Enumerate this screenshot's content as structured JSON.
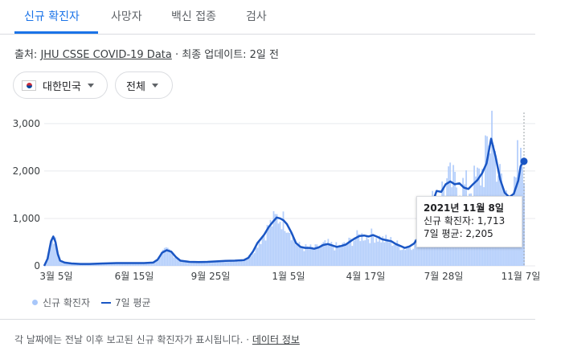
{
  "tabs": [
    {
      "label": "신규 확진자",
      "active": true
    },
    {
      "label": "사망자",
      "active": false
    },
    {
      "label": "백신 접종",
      "active": false
    },
    {
      "label": "검사",
      "active": false
    }
  ],
  "source": {
    "prefix": "출처: ",
    "link": "JHU CSSE COVID-19 Data",
    "updated": " · 최종 업데이트: 2일 전"
  },
  "filters": {
    "country": "대한민국",
    "region": "전체",
    "country_flag_icon": "south-korea-flag-icon",
    "dropdown_icon": "caret-down-icon"
  },
  "colors": {
    "bars": "#a8c7fa",
    "avg_line": "#1a56c4",
    "accent": "#1a73e8"
  },
  "tooltip": {
    "date": "2021년 11월 8일",
    "cases": "신규 확진자: 1,713",
    "avg": "7일 평균: 2,205"
  },
  "legend": {
    "cases": "신규 확진자",
    "avg": "7일 평균"
  },
  "footer": {
    "note": "각 날짜에는 전날 이후 보고된 신규 확진자가 표시됩니다. · ",
    "link": "데이터 정보"
  },
  "chart_data": {
    "type": "bar",
    "y_ticks": [
      "0",
      "1,000",
      "2,000",
      "3,000"
    ],
    "x_ticks": [
      "3월 5일",
      "6월 15일",
      "9월 25일",
      "1월 5일",
      "4월 17일",
      "7월 28일",
      "11월 7일"
    ],
    "ylim": [
      0,
      3200
    ],
    "grid": true,
    "series": [
      {
        "name": "7일 평균",
        "type": "line",
        "points": [
          [
            0,
            0
          ],
          [
            1.5,
            150
          ],
          [
            3,
            520
          ],
          [
            4,
            620
          ],
          [
            5,
            500
          ],
          [
            6,
            250
          ],
          [
            7,
            110
          ],
          [
            9,
            70
          ],
          [
            12,
            50
          ],
          [
            16,
            40
          ],
          [
            20,
            40
          ],
          [
            26,
            50
          ],
          [
            32,
            60
          ],
          [
            38,
            60
          ],
          [
            44,
            60
          ],
          [
            48,
            70
          ],
          [
            50,
            130
          ],
          [
            52,
            280
          ],
          [
            54,
            330
          ],
          [
            56,
            300
          ],
          [
            58,
            190
          ],
          [
            60,
            110
          ],
          [
            64,
            85
          ],
          [
            68,
            80
          ],
          [
            72,
            85
          ],
          [
            76,
            95
          ],
          [
            80,
            105
          ],
          [
            84,
            110
          ],
          [
            88,
            120
          ],
          [
            90,
            170
          ],
          [
            92,
            300
          ],
          [
            94,
            480
          ],
          [
            95.5,
            570
          ],
          [
            97,
            660
          ],
          [
            99,
            820
          ],
          [
            101,
            940
          ],
          [
            102.5,
            1020
          ],
          [
            104,
            1000
          ],
          [
            105.5,
            960
          ],
          [
            107,
            880
          ],
          [
            109,
            700
          ],
          [
            111,
            480
          ],
          [
            113,
            400
          ],
          [
            115,
            380
          ],
          [
            117,
            380
          ],
          [
            119,
            360
          ],
          [
            121,
            390
          ],
          [
            123,
            440
          ],
          [
            125,
            460
          ],
          [
            127,
            430
          ],
          [
            129,
            400
          ],
          [
            131,
            420
          ],
          [
            133,
            450
          ],
          [
            135,
            520
          ],
          [
            137,
            580
          ],
          [
            139,
            630
          ],
          [
            141,
            640
          ],
          [
            143,
            620
          ],
          [
            145,
            650
          ],
          [
            147,
            610
          ],
          [
            149,
            560
          ],
          [
            151,
            540
          ],
          [
            153,
            520
          ],
          [
            155,
            460
          ],
          [
            157,
            420
          ],
          [
            159,
            380
          ],
          [
            161,
            410
          ],
          [
            163,
            470
          ],
          [
            165,
            600
          ],
          [
            167,
            880
          ],
          [
            169,
            1130
          ],
          [
            171,
            1320
          ],
          [
            173,
            1580
          ],
          [
            175,
            1560
          ],
          [
            177,
            1720
          ],
          [
            179,
            1780
          ],
          [
            181,
            1720
          ],
          [
            183,
            1740
          ],
          [
            185,
            1650
          ],
          [
            187,
            1620
          ],
          [
            189,
            1720
          ],
          [
            191,
            1810
          ],
          [
            193,
            1950
          ],
          [
            195,
            2160
          ],
          [
            197,
            2680
          ],
          [
            199,
            2300
          ],
          [
            201,
            1820
          ],
          [
            203,
            1540
          ],
          [
            205,
            1450
          ],
          [
            207,
            1520
          ],
          [
            209,
            1800
          ],
          [
            210,
            2100
          ],
          [
            211.5,
            2205
          ]
        ],
        "x_domain": [
          0,
          211.5
        ]
      },
      {
        "name": "신규 확진자",
        "type": "bar",
        "note": "daily values closely follow the 7-day average with noise; peak near 3,270"
      }
    ],
    "highlight_point": {
      "date": "2021년 11월 8일",
      "cases": 1713,
      "avg": 2205
    }
  }
}
